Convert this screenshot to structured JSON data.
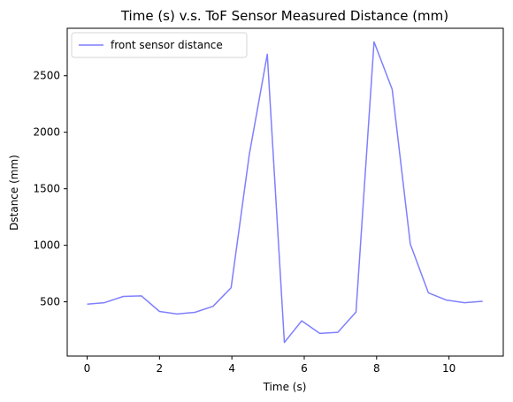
{
  "chart_data": {
    "type": "line",
    "title": "Time (s) v.s. ToF Sensor Measured Distance (mm)",
    "xlabel": "Time (s)",
    "ylabel": "Dstance (mm)",
    "xlim": [
      -0.55,
      11.5
    ],
    "ylim": [
      20,
      2920
    ],
    "xticks": [
      0,
      2,
      4,
      6,
      8,
      10
    ],
    "yticks": [
      500,
      1000,
      1500,
      2000,
      2500
    ],
    "grid": false,
    "legend_position": "top-left",
    "series": [
      {
        "name": "front sensor distance",
        "color": "#7f7fff",
        "x": [
          0,
          0.48,
          1.0,
          1.5,
          2.0,
          2.48,
          2.98,
          3.48,
          3.98,
          4.48,
          4.98,
          5.45,
          5.93,
          6.43,
          6.93,
          7.43,
          7.93,
          8.43,
          8.93,
          9.43,
          9.93,
          10.43,
          10.93
        ],
        "y": [
          480,
          492,
          548,
          552,
          415,
          392,
          407,
          460,
          625,
          1800,
          2690,
          140,
          332,
          220,
          230,
          410,
          2800,
          2380,
          1010,
          580,
          515,
          492,
          505
        ]
      }
    ]
  }
}
